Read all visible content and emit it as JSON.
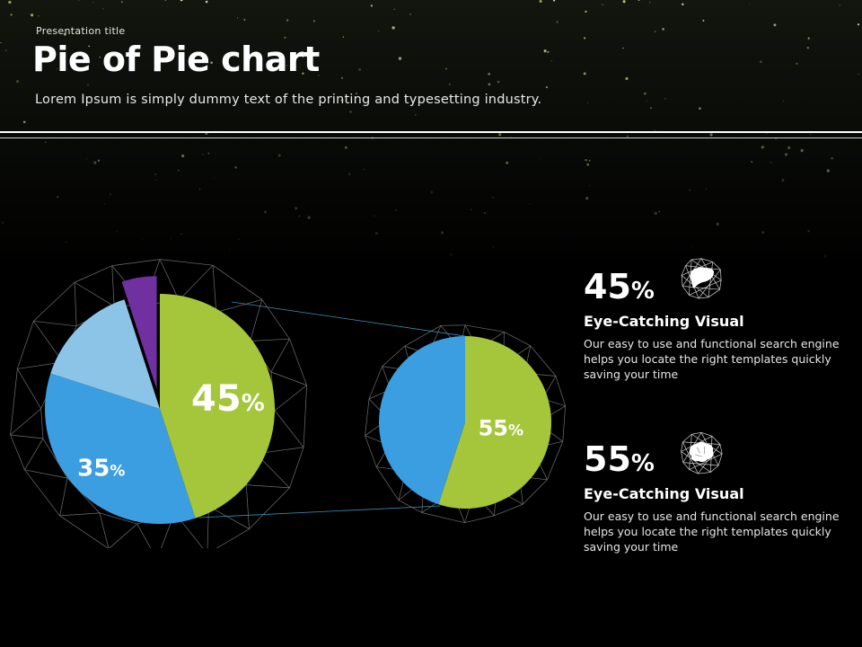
{
  "header": {
    "kicker": "Presentation  title",
    "title": "Pie of Pie chart",
    "subtitle": "Lorem Ipsum is simply dummy text of the printing and typesetting industry."
  },
  "chart_data": [
    {
      "type": "pie",
      "slices": [
        {
          "label": "45%",
          "value": 45,
          "color": "#a5c63b"
        },
        {
          "label": "35%",
          "value": 35,
          "color": "#3b9ee0"
        },
        {
          "label": "",
          "value": 15,
          "color": "#8cc4e8"
        },
        {
          "label": "",
          "value": 5,
          "color": "#7030a0"
        }
      ]
    },
    {
      "type": "pie",
      "slices": [
        {
          "label": "55%",
          "value": 55,
          "color": "#a5c63b"
        },
        {
          "label": "",
          "value": 45,
          "color": "#3b9ee0"
        }
      ]
    }
  ],
  "stats": [
    {
      "value": "45",
      "symbol": "%",
      "heading": "Eye-Catching Visual",
      "body": "Our easy to use and functional search engine helps you locate the right templates quickly saving your time",
      "icon": "liver-icon"
    },
    {
      "value": "55",
      "symbol": "%",
      "heading": "Eye-Catching Visual",
      "body": "Our easy to use and functional search engine helps you locate the right templates quickly saving your time",
      "icon": "brain-icon"
    }
  ]
}
